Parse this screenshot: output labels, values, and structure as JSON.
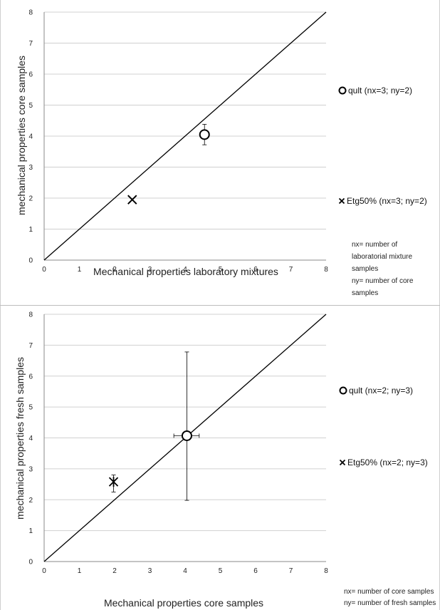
{
  "chart_data": [
    {
      "type": "scatter",
      "xlabel": "Mechanical properties laboratory mixtures",
      "ylabel": "mechanical properties  core samples",
      "xlim": [
        0,
        8
      ],
      "ylim": [
        0,
        8
      ],
      "x_ticks": [
        "0",
        "1",
        "2",
        "3",
        "4",
        "5",
        "6",
        "7",
        "8"
      ],
      "y_ticks": [
        "0",
        "1",
        "2",
        "3",
        "4",
        "5",
        "6",
        "7",
        "8"
      ],
      "grid": "horizontal",
      "reference_line": {
        "from": [
          0,
          0
        ],
        "to": [
          8,
          8
        ]
      },
      "legend_position": "right",
      "series": [
        {
          "name": "qult (nx=3; ny=2)",
          "marker": "circle",
          "x": 4.55,
          "y": 4.05,
          "y_err": [
            3.72,
            4.38
          ]
        },
        {
          "name": "Etg50% (nx=3; ny=2)",
          "marker": "x",
          "x": 2.5,
          "y": 1.95
        }
      ],
      "notes": [
        "nx= number of",
        "laboratorial   mixture",
        "samples",
        "ny= number of core",
        "samples"
      ]
    },
    {
      "type": "scatter",
      "xlabel": "Mechanical properties core samples",
      "ylabel": "mechanical properties  fresh samples",
      "xlim": [
        0,
        8
      ],
      "ylim": [
        0,
        8
      ],
      "x_ticks": [
        "0",
        "1",
        "2",
        "3",
        "4",
        "5",
        "6",
        "7",
        "8"
      ],
      "y_ticks": [
        "0",
        "1",
        "2",
        "3",
        "4",
        "5",
        "6",
        "7",
        "8"
      ],
      "grid": "horizontal",
      "reference_line": {
        "from": [
          0,
          0
        ],
        "to": [
          8,
          8
        ]
      },
      "legend_position": "right",
      "series": [
        {
          "name": "qult (nx=2; ny=3)",
          "marker": "circle",
          "x": 4.05,
          "y": 4.07,
          "y_err": [
            1.98,
            6.78
          ],
          "x_err": [
            3.68,
            4.4
          ]
        },
        {
          "name": "Etg50% (nx=2; ny=3)",
          "marker": "star",
          "x": 1.97,
          "y": 2.58,
          "y_err": [
            2.25,
            2.8
          ]
        }
      ],
      "notes": [
        "nx= number of core samples",
        "ny= number of fresh samples"
      ]
    }
  ]
}
